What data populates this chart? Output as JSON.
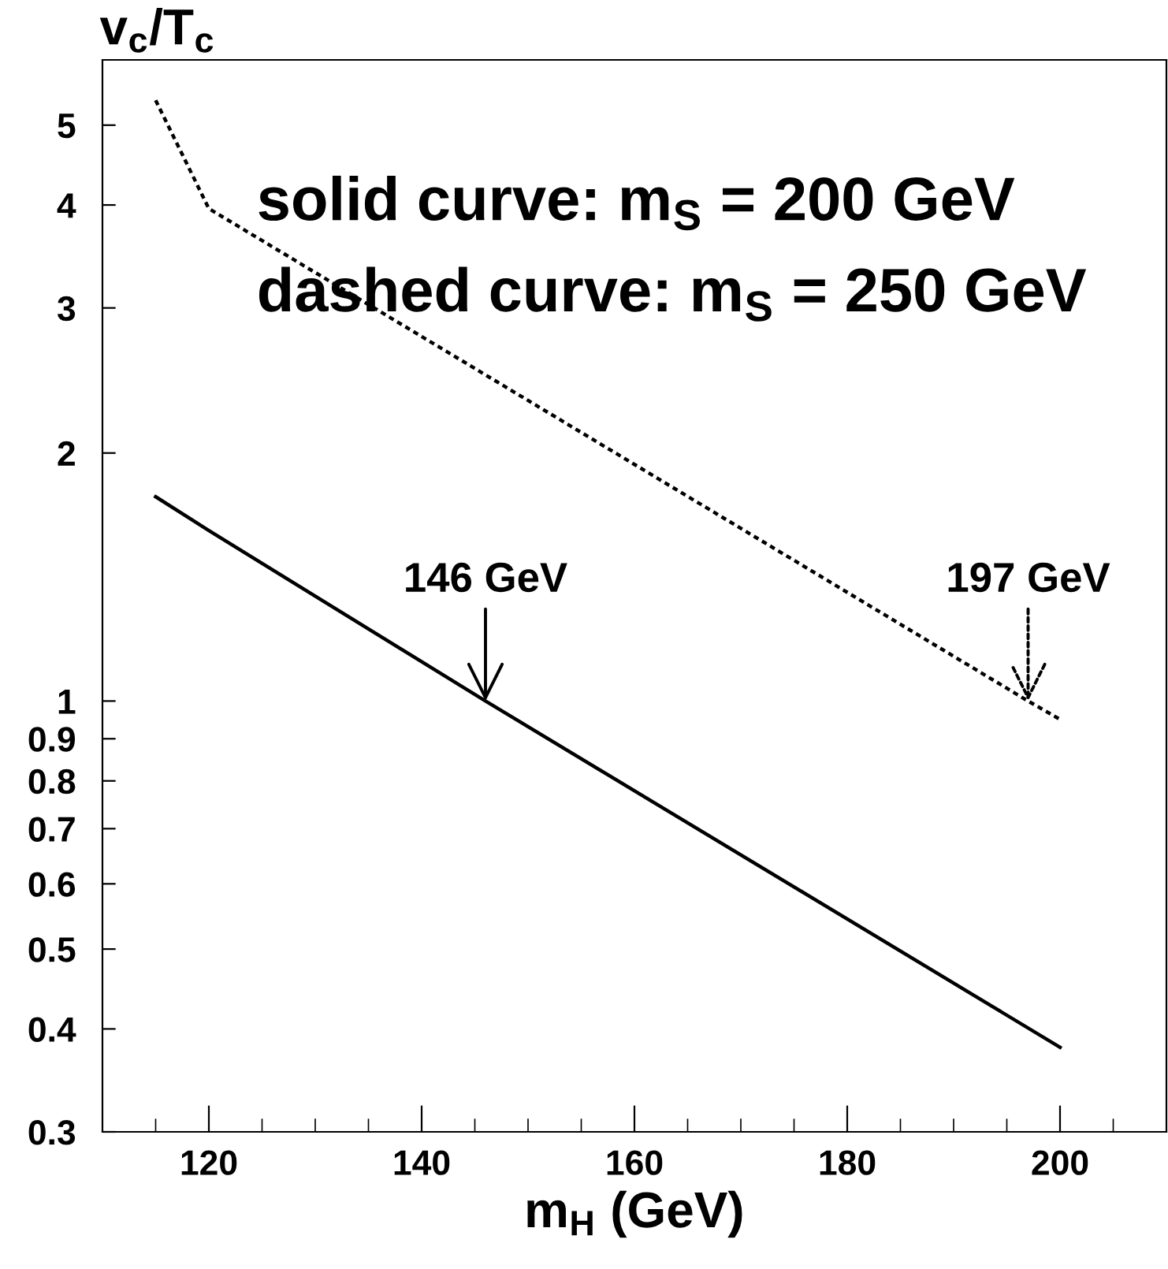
{
  "chart_data": {
    "type": "line",
    "xlabel": "m$_{H}$ (GeV)",
    "ylabel": "v$_{c}$/T$_{c}$",
    "log": "y",
    "xlim": [
      110,
      210
    ],
    "xticks": [
      120,
      140,
      160,
      180,
      200
    ],
    "ylim": [
      0.3,
      6
    ],
    "yticks": [
      0.3,
      0.4,
      0.5,
      0.6,
      0.7,
      0.8,
      0.9,
      1,
      2,
      3,
      4,
      5
    ],
    "grid": false,
    "marker": "none",
    "series": [
      {
        "color": "#000000",
        "line_style": "solid",
        "x": [
          115,
          120,
          146,
          200
        ],
        "values": [
          1.77,
          1.61,
          1.0,
          0.38
        ]
      },
      {
        "color": "#000000",
        "line_style": "dotted",
        "x": [
          115,
          120,
          197,
          200
        ],
        "values": [
          5.36,
          3.96,
          1.0,
          0.95
        ]
      }
    ],
    "annotations": [
      "solid curve: m$_{S}$ = 200 GeV",
      "dashed curve: m$_{S}$ = 250 GeV",
      {
        "text": "146 GeV",
        "x": 146,
        "y": 1.0
      },
      {
        "text": "197 GeV",
        "x": 197,
        "y": 1.0
      }
    ]
  }
}
